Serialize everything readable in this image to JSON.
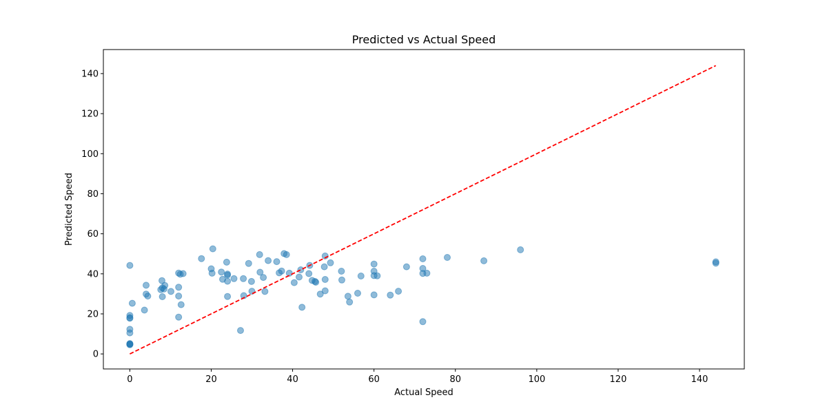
{
  "chart_data": {
    "type": "scatter",
    "title": "Predicted vs Actual Speed",
    "xlabel": "Actual Speed",
    "ylabel": "Predicted Speed",
    "xlim": [
      -6.5,
      151
    ],
    "ylim": [
      -7.5,
      152
    ],
    "xticks": [
      0,
      20,
      40,
      60,
      80,
      100,
      120,
      140
    ],
    "yticks": [
      0,
      20,
      40,
      60,
      80,
      100,
      120,
      140
    ],
    "grid": false,
    "point_color": "#1f77b4",
    "line_color": "#ff0000",
    "reference_line": {
      "x": [
        0,
        144
      ],
      "y": [
        0,
        144
      ]
    },
    "points": [
      [
        0,
        44.2
      ],
      [
        0,
        19.2
      ],
      [
        0,
        18.1
      ],
      [
        0,
        17.8
      ],
      [
        0,
        12.3
      ],
      [
        0,
        10.5
      ],
      [
        0,
        5.0
      ],
      [
        0,
        4.8
      ],
      [
        0,
        4.6
      ],
      [
        0,
        5.2
      ],
      [
        0.6,
        25.3
      ],
      [
        3.6,
        21.9
      ],
      [
        4,
        34.3
      ],
      [
        4,
        29.9
      ],
      [
        4.4,
        28.9
      ],
      [
        7.6,
        32.1
      ],
      [
        7.9,
        36.6
      ],
      [
        8,
        28.6
      ],
      [
        8,
        33.0
      ],
      [
        8.4,
        32.4
      ],
      [
        8.6,
        34.2
      ],
      [
        10.1,
        31.2
      ],
      [
        12,
        40.4
      ],
      [
        12,
        33.3
      ],
      [
        12,
        28.9
      ],
      [
        12,
        18.4
      ],
      [
        12.4,
        39.8
      ],
      [
        12.6,
        24.6
      ],
      [
        13.1,
        40.1
      ],
      [
        17.6,
        47.6
      ],
      [
        20,
        42.5
      ],
      [
        20.2,
        40.3
      ],
      [
        20.4,
        52.5
      ],
      [
        22.5,
        40.9
      ],
      [
        22.8,
        37.3
      ],
      [
        23.8,
        45.8
      ],
      [
        24,
        39.9
      ],
      [
        24,
        36.3
      ],
      [
        24,
        39.4
      ],
      [
        24,
        28.7
      ],
      [
        25.6,
        37.6
      ],
      [
        27.2,
        11.7
      ],
      [
        27.9,
        37.6
      ],
      [
        28,
        29.1
      ],
      [
        29.2,
        45.2
      ],
      [
        29.9,
        36.2
      ],
      [
        30,
        31.3
      ],
      [
        31.9,
        49.6
      ],
      [
        32,
        40.8
      ],
      [
        32.8,
        38.2
      ],
      [
        33.2,
        31.2
      ],
      [
        34,
        46.6
      ],
      [
        36.1,
        46.1
      ],
      [
        36.7,
        40.5
      ],
      [
        37.3,
        41.4
      ],
      [
        37.9,
        50.1
      ],
      [
        38.5,
        49.6
      ],
      [
        39.2,
        40.3
      ],
      [
        40.4,
        35.6
      ],
      [
        41.6,
        38.4
      ],
      [
        42,
        42.0
      ],
      [
        42.3,
        23.3
      ],
      [
        44,
        40.1
      ],
      [
        44.2,
        44.2
      ],
      [
        44.8,
        36.7
      ],
      [
        45.5,
        36.2
      ],
      [
        45.7,
        35.8
      ],
      [
        46.8,
        29.9
      ],
      [
        47.8,
        43.5
      ],
      [
        48,
        48.9
      ],
      [
        48,
        37.2
      ],
      [
        48,
        31.5
      ],
      [
        49.3,
        45.5
      ],
      [
        52,
        41.3
      ],
      [
        52.1,
        36.9
      ],
      [
        53.6,
        28.8
      ],
      [
        54,
        25.9
      ],
      [
        56,
        30.3
      ],
      [
        56.8,
        38.9
      ],
      [
        60,
        44.9
      ],
      [
        60,
        41.3
      ],
      [
        60,
        39.1
      ],
      [
        60,
        29.5
      ],
      [
        60.8,
        39.0
      ],
      [
        64,
        29.4
      ],
      [
        66,
        31.3
      ],
      [
        68,
        43.5
      ],
      [
        72,
        47.5
      ],
      [
        72,
        42.7
      ],
      [
        72,
        40.2
      ],
      [
        72,
        16.1
      ],
      [
        73,
        40.3
      ],
      [
        78,
        48.2
      ],
      [
        87,
        46.5
      ],
      [
        96,
        52.0
      ],
      [
        144,
        46.0
      ],
      [
        144,
        45.3
      ]
    ]
  }
}
